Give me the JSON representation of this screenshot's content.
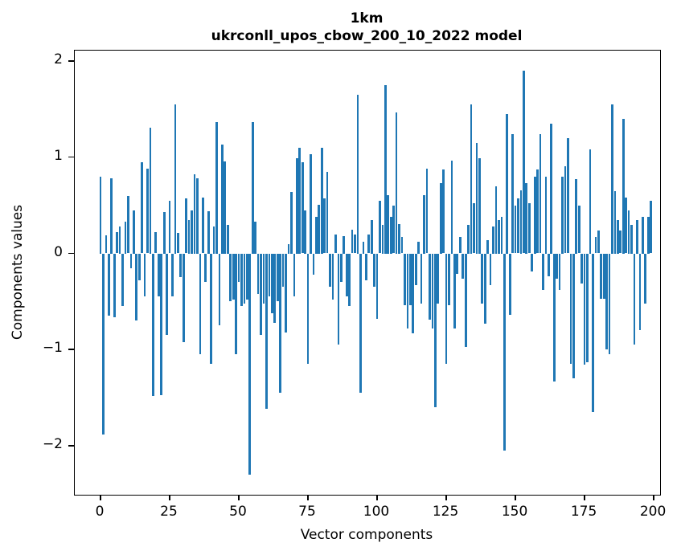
{
  "chart_data": {
    "type": "bar",
    "title_line1": "1km",
    "title_line2": "ukrconll_upos_cbow_200_10_2022 model",
    "xlabel": "Vector components",
    "ylabel": "Components values",
    "x_ticks": [
      0,
      25,
      50,
      75,
      100,
      125,
      150,
      175,
      200
    ],
    "y_ticks": [
      2,
      1,
      0,
      -1,
      -2
    ],
    "y_tick_labels": [
      "2",
      "1",
      "0",
      "−1",
      "−2"
    ],
    "xlim": [
      -9.3,
      202.3
    ],
    "ylim": [
      -2.51,
      2.11
    ],
    "bar_color": "#1f77b4",
    "bar_width": 0.8,
    "grid": false,
    "legend": null,
    "values": [
      0.8,
      -1.88,
      0.19,
      -0.65,
      0.78,
      -0.66,
      0.22,
      0.28,
      -0.55,
      0.33,
      0.6,
      -0.15,
      0.45,
      -0.7,
      -0.28,
      0.95,
      -0.45,
      0.88,
      1.31,
      -1.48,
      0.22,
      -0.45,
      -1.47,
      0.43,
      -0.85,
      0.55,
      -0.45,
      1.55,
      0.21,
      -0.25,
      -0.92,
      0.57,
      0.35,
      0.45,
      0.82,
      0.78,
      -1.05,
      0.58,
      -0.3,
      0.44,
      -1.15,
      0.28,
      1.37,
      -0.75,
      1.13,
      0.96,
      0.3,
      -0.5,
      -0.48,
      -1.05,
      -0.3,
      -0.55,
      -0.52,
      -0.48,
      -2.3,
      1.37,
      0.33,
      -0.42,
      -0.85,
      -0.52,
      -1.62,
      -0.45,
      -0.62,
      -0.72,
      -0.5,
      -1.45,
      -0.35,
      -0.82,
      0.1,
      0.64,
      -0.45,
      0.99,
      1.1,
      0.95,
      0.45,
      -1.15,
      1.03,
      -0.22,
      0.38,
      0.51,
      1.1,
      0.57,
      0.85,
      -0.35,
      -0.48,
      0.2,
      -0.95,
      -0.3,
      0.18,
      -0.45,
      -0.55,
      0.25,
      0.2,
      1.65,
      -1.45,
      0.12,
      -0.28,
      0.2,
      0.35,
      -0.35,
      -0.68,
      0.55,
      0.3,
      1.75,
      0.61,
      0.38,
      0.5,
      1.47,
      0.31,
      0.17,
      -0.54,
      -0.78,
      -0.54,
      -0.83,
      -0.33,
      0.12,
      -0.52,
      0.61,
      0.88,
      -0.69,
      -0.78,
      -1.6,
      -0.52,
      0.73,
      0.87,
      -1.15,
      -0.54,
      0.97,
      -0.78,
      -0.21,
      0.17,
      -0.26,
      -0.97,
      0.3,
      1.55,
      0.52,
      1.15,
      0.99,
      -0.52,
      -0.73,
      0.14,
      -0.33,
      0.28,
      0.7,
      0.35,
      0.38,
      -2.05,
      1.45,
      -0.64,
      1.24,
      0.5,
      0.57,
      0.66,
      1.9,
      0.73,
      0.52,
      -0.19,
      0.8,
      0.87,
      1.24,
      -0.38,
      0.8,
      -0.24,
      1.35,
      -1.33,
      -0.26,
      -0.38,
      0.8,
      0.91,
      1.2,
      -1.15,
      -1.3,
      0.77,
      0.5,
      -0.31,
      -1.16,
      -1.13,
      1.08,
      -1.65,
      0.17,
      0.24,
      -0.47,
      -0.47,
      -1.0,
      -1.05,
      1.55,
      0.65,
      0.35,
      0.24,
      1.4,
      0.58,
      0.45,
      0.3,
      -0.95,
      0.35,
      -0.8,
      0.38,
      -0.52,
      0.38,
      0.55
    ]
  }
}
